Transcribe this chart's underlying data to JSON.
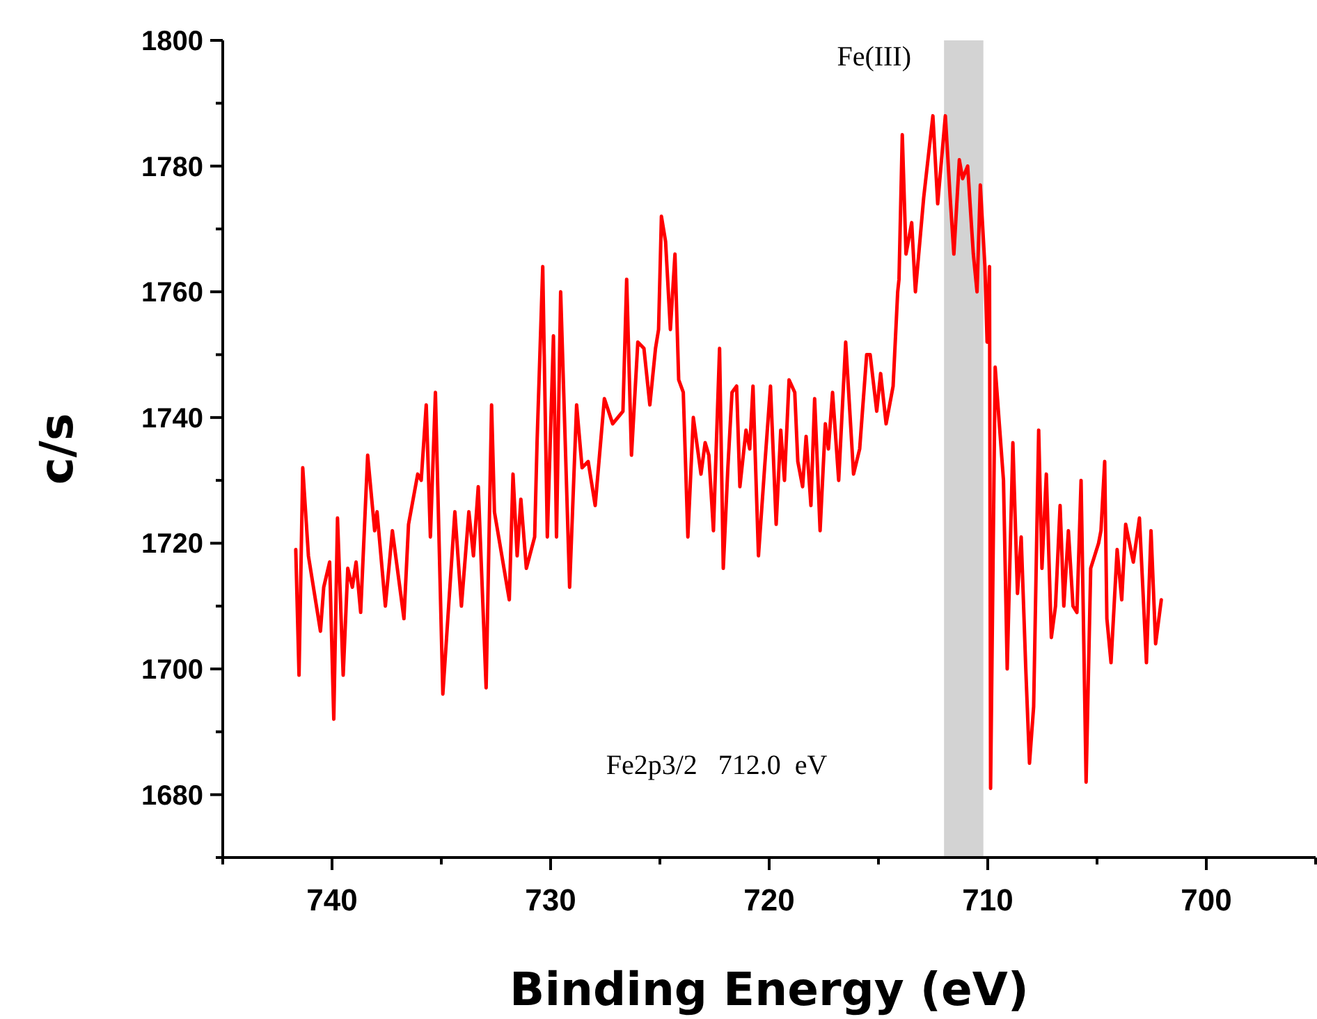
{
  "chart_data": {
    "type": "line",
    "xlabel": "Binding Energy (eV)",
    "ylabel": "c/s",
    "xlim": [
      745,
      695
    ],
    "ylim": [
      1670,
      1800
    ],
    "xticks": [
      {
        "value": 745,
        "label": null
      },
      740,
      {
        "value": 735,
        "label": null
      },
      730,
      {
        "value": 725,
        "label": null
      },
      720,
      {
        "value": 715,
        "label": null
      },
      710,
      {
        "value": 705,
        "label": null
      },
      700,
      {
        "value": 695,
        "label": null
      }
    ],
    "yticks": [
      {
        "value": 1670,
        "label": null
      },
      1680,
      {
        "value": 1690,
        "label": null
      },
      1700,
      {
        "value": 1710,
        "label": null
      },
      1720,
      {
        "value": 1730,
        "label": null
      },
      1740,
      {
        "value": 1750,
        "label": null
      },
      1760,
      {
        "value": 1770,
        "label": null
      },
      1780,
      {
        "value": 1790,
        "label": null
      },
      1800
    ],
    "grid": false,
    "marker": "none",
    "line_style": "solid",
    "bands": [
      {
        "axis": "x",
        "from": 712,
        "to": 710.2,
        "color": "#d3d3d3"
      }
    ],
    "annotations": [
      "Fe(III)",
      "Fe2p3/2   712.0  eV"
    ],
    "series": [
      {
        "color": "#ff0000",
        "x": [
          741.66,
          741.51,
          741.34,
          741.08,
          740.53,
          740.38,
          740.11,
          739.92,
          739.75,
          739.49,
          739.28,
          739.07,
          738.9,
          738.69,
          738.37,
          738.05,
          737.94,
          737.56,
          737.24,
          736.71,
          736.5,
          736.08,
          735.92,
          735.69,
          735.5,
          735.27,
          734.93,
          734.38,
          734.08,
          733.74,
          733.53,
          733.31,
          732.95,
          732.7,
          732.57,
          731.89,
          731.72,
          731.53,
          731.36,
          731.11,
          730.73,
          730.62,
          730.36,
          730.15,
          729.87,
          729.73,
          729.54,
          729.13,
          728.81,
          728.56,
          728.28,
          727.96,
          727.54,
          727.16,
          726.69,
          726.52,
          726.3,
          726.01,
          725.73,
          725.46,
          725.2,
          725.06,
          724.93,
          724.74,
          724.52,
          724.31,
          724.14,
          723.93,
          723.72,
          723.47,
          723.12,
          722.93,
          722.76,
          722.55,
          722.27,
          722.1,
          721.89,
          721.7,
          721.49,
          721.34,
          721.06,
          720.89,
          720.74,
          720.49,
          720.21,
          719.94,
          719.68,
          719.47,
          719.3,
          719.09,
          718.83,
          718.69,
          718.47,
          718.31,
          718.09,
          717.92,
          717.67,
          717.43,
          717.29,
          717.1,
          716.82,
          716.5,
          716.14,
          715.86,
          715.54,
          715.38,
          715.08,
          714.9,
          714.65,
          714.33,
          714.12,
          714.06,
          713.91,
          713.74,
          713.48,
          713.31,
          712.93,
          712.51,
          712.29,
          711.94,
          711.72,
          711.55,
          711.3,
          711.15,
          710.92,
          710.66,
          710.49,
          710.34,
          710.13,
          710.03,
          709.92,
          709.87,
          709.66,
          709.45,
          709.28,
          709.11,
          708.85,
          708.64,
          708.47,
          708.26,
          708.09,
          707.9,
          707.67,
          707.52,
          707.32,
          707.09,
          706.9,
          706.69,
          706.52,
          706.31,
          706.1,
          705.92,
          705.73,
          705.5,
          705.29,
          704.93,
          704.82,
          704.65,
          704.55,
          704.36,
          704.08,
          703.87,
          703.69,
          703.34,
          703.06,
          702.74,
          702.53,
          702.32,
          702.06
        ],
        "values": [
          1719,
          1699,
          1732,
          1718,
          1706,
          1713,
          1717,
          1692,
          1724,
          1699,
          1716,
          1713,
          1717,
          1709,
          1734,
          1722,
          1725,
          1710,
          1722,
          1708,
          1723,
          1731,
          1730,
          1742,
          1721,
          1744,
          1696,
          1725,
          1710,
          1725,
          1718,
          1729,
          1697,
          1742,
          1725,
          1711,
          1731,
          1718,
          1727,
          1716,
          1721,
          1736,
          1764,
          1721,
          1753,
          1721,
          1760,
          1713,
          1742,
          1732,
          1733,
          1726,
          1743,
          1739,
          1741,
          1762,
          1734,
          1752,
          1751,
          1742,
          1751,
          1754,
          1772,
          1768,
          1754,
          1766,
          1746,
          1744,
          1721,
          1740,
          1731,
          1736,
          1734,
          1722,
          1751,
          1716,
          1732,
          1744,
          1745,
          1729,
          1738,
          1735,
          1745,
          1718,
          1732,
          1745,
          1723,
          1738,
          1730,
          1746,
          1744,
          1733,
          1729,
          1737,
          1726,
          1743,
          1722,
          1739,
          1735,
          1744,
          1730,
          1752,
          1731,
          1735,
          1750,
          1750,
          1741,
          1747,
          1739,
          1745,
          1760,
          1762,
          1785,
          1766,
          1771,
          1760,
          1775,
          1788,
          1774,
          1788,
          1775,
          1766,
          1781,
          1778,
          1780,
          1766,
          1760,
          1777,
          1764,
          1752,
          1764,
          1681,
          1748,
          1738,
          1730,
          1700,
          1736,
          1712,
          1721,
          1700,
          1685,
          1694,
          1738,
          1716,
          1731,
          1705,
          1710,
          1726,
          1710,
          1722,
          1710,
          1709,
          1730,
          1682,
          1716,
          1720,
          1722,
          1733,
          1708,
          1701,
          1719,
          1711,
          1723,
          1717,
          1724,
          1701,
          1722,
          1704,
          1711
        ]
      }
    ]
  }
}
